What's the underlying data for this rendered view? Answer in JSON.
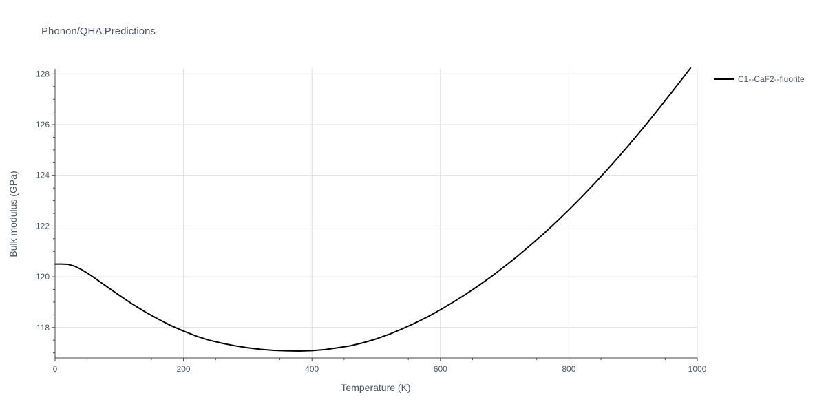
{
  "chart_data": {
    "type": "line",
    "title": "Phonon/QHA Predictions",
    "xlabel": "Temperature (K)",
    "ylabel": "Bulk modulus (GPa)",
    "xlim": [
      0,
      1000
    ],
    "ylim": [
      116.8,
      128.2
    ],
    "xticks": [
      0,
      200,
      400,
      600,
      800,
      1000
    ],
    "yticks": [
      118,
      120,
      122,
      124,
      126,
      128
    ],
    "grid": true,
    "legend_position": "top-right",
    "series": [
      {
        "name": "C1--CaF2--fluorite",
        "color": "#000000",
        "x": [
          0,
          10,
          20,
          30,
          40,
          50,
          60,
          80,
          100,
          120,
          140,
          160,
          180,
          200,
          220,
          240,
          260,
          280,
          300,
          320,
          340,
          360,
          380,
          400,
          420,
          440,
          460,
          480,
          500,
          520,
          540,
          560,
          580,
          600,
          620,
          640,
          660,
          680,
          700,
          720,
          740,
          760,
          780,
          800,
          820,
          840,
          860,
          880,
          900,
          920,
          940,
          960,
          980,
          990
        ],
        "y": [
          120.5,
          120.5,
          120.49,
          120.42,
          120.3,
          120.15,
          119.98,
          119.62,
          119.27,
          118.93,
          118.62,
          118.34,
          118.08,
          117.86,
          117.66,
          117.5,
          117.38,
          117.28,
          117.2,
          117.14,
          117.1,
          117.08,
          117.07,
          117.09,
          117.13,
          117.2,
          117.28,
          117.4,
          117.55,
          117.73,
          117.94,
          118.17,
          118.42,
          118.7,
          119.0,
          119.32,
          119.66,
          120.02,
          120.41,
          120.81,
          121.24,
          121.68,
          122.15,
          122.64,
          123.15,
          123.68,
          124.23,
          124.8,
          125.39,
          126.0,
          126.63,
          127.27,
          127.92,
          128.25
        ]
      }
    ]
  }
}
